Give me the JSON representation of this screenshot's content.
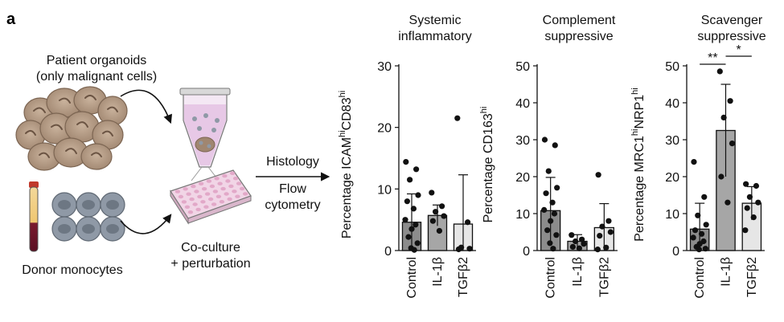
{
  "panel_label": "a",
  "schematic": {
    "organoids_label_line1": "Patient organoids",
    "organoids_label_line2": "(only malignant cells)",
    "monocytes_label": "Donor monocytes",
    "coculture_line1": "Co-culture",
    "coculture_line2": "+ perturbation",
    "readout1": "Histology",
    "readout2_line1": "Flow",
    "readout2_line2": "cytometry"
  },
  "colors": {
    "control_bar": "#8c8c8c",
    "il1b_bar": "#a6a6a6",
    "tgfb_bar": "#e6e6e6",
    "dot": "#111111",
    "organoid": "#b49a84",
    "monocyte": "#8f99a6"
  },
  "chart_data": [
    {
      "type": "bar",
      "title_line1": "Systemic",
      "title_line2": "inflammatory",
      "ylabel_base": "Percentage ICAM",
      "ylabel_sup1": "hi",
      "ylabel_mid": "CD83",
      "ylabel_sup2": "hi",
      "ylim": [
        0,
        30
      ],
      "yticks": [
        0,
        10,
        20,
        30
      ],
      "categories": [
        "Control",
        "IL-1β",
        "TGFβ2"
      ],
      "values": [
        4.6,
        5.7,
        4.3
      ],
      "errors": [
        4.6,
        1.7,
        8.0
      ],
      "points": [
        [
          14.4,
          13.2,
          11.5,
          9.0,
          8.0,
          6.8,
          5.0,
          4.2,
          3.5,
          2.2,
          1.2,
          0.4,
          0.1
        ],
        [
          9.4,
          7.2,
          6.3,
          5.6,
          4.8,
          3.2
        ],
        [
          21.5,
          4.6,
          0.5,
          0.3,
          0.2
        ]
      ],
      "significance": []
    },
    {
      "type": "bar",
      "title_line1": "Complement",
      "title_line2": "suppressive",
      "ylabel_base": "Percentage CD163",
      "ylabel_sup1": "hi",
      "ylabel_mid": "",
      "ylabel_sup2": "",
      "ylim": [
        0,
        50
      ],
      "yticks": [
        0,
        10,
        20,
        30,
        40,
        50
      ],
      "categories": [
        "Control",
        "IL-1β",
        "TGFβ2"
      ],
      "values": [
        10.8,
        2.5,
        6.2
      ],
      "errors": [
        9.0,
        1.8,
        6.5
      ],
      "points": [
        [
          30.0,
          28.5,
          21.5,
          17.0,
          15.5,
          13.0,
          11.0,
          10.0,
          8.0,
          5.5,
          4.2,
          2.0,
          0.5
        ],
        [
          4.2,
          3.0,
          2.5,
          1.8,
          1.0,
          0.6
        ],
        [
          20.5,
          8.0,
          6.5,
          5.0,
          4.0,
          0.8,
          0.3
        ]
      ],
      "significance": []
    },
    {
      "type": "bar",
      "title_line1": "Scavenger",
      "title_line2": "suppressive",
      "ylabel_base": "Percentage MRC1",
      "ylabel_sup1": "hi",
      "ylabel_mid": "NRP1",
      "ylabel_sup2": "hi",
      "ylim": [
        0,
        50
      ],
      "yticks": [
        0,
        10,
        20,
        30,
        40,
        50
      ],
      "categories": [
        "Control",
        "IL-1β",
        "TGFβ2"
      ],
      "values": [
        5.8,
        32.5,
        12.8
      ],
      "errors": [
        7.0,
        12.5,
        4.5
      ],
      "points": [
        [
          24.0,
          14.5,
          9.5,
          7.0,
          5.5,
          4.5,
          3.5,
          2.5,
          1.8,
          1.0,
          0.5,
          0.3
        ],
        [
          48.5,
          40.5,
          36.0,
          29.0,
          20.0,
          13.0
        ],
        [
          18.0,
          17.5,
          14.5,
          13.0,
          11.5,
          9.0,
          5.5
        ]
      ],
      "significance": [
        {
          "from": 0,
          "to": 1,
          "label": "**",
          "level": 1
        },
        {
          "from": 1,
          "to": 2,
          "label": "*",
          "level": 0
        }
      ]
    }
  ]
}
